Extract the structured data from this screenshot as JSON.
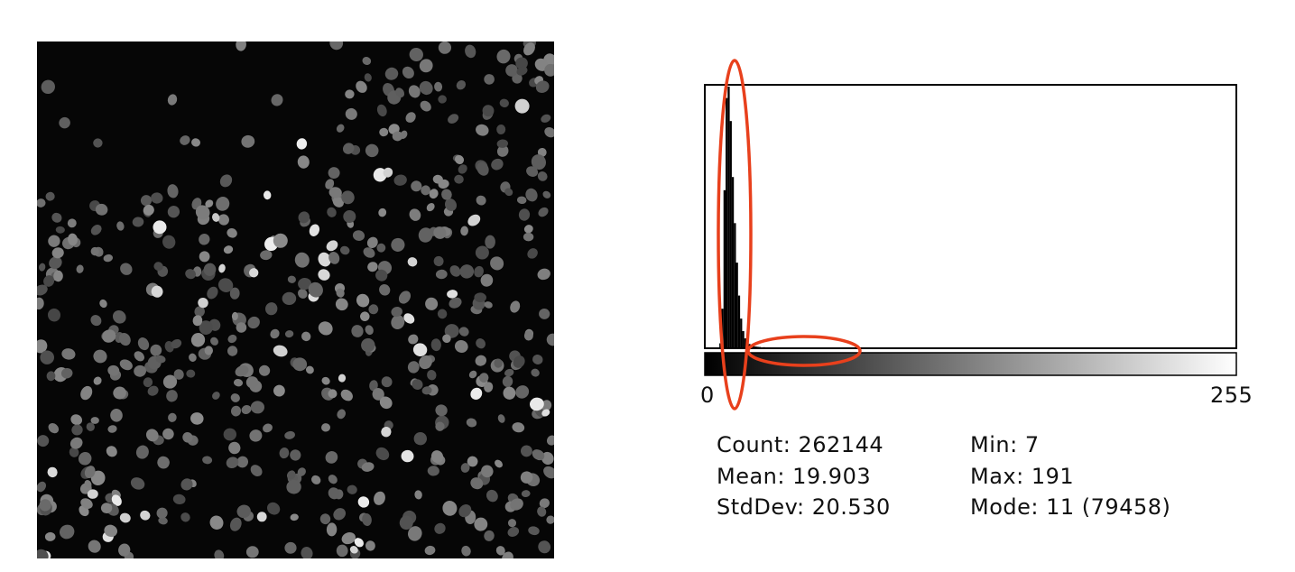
{
  "image": {
    "subject": "fluorescent-nuclei",
    "background": "#060606"
  },
  "histogram": {
    "x_min_label": "0",
    "x_max_label": "255",
    "highlight_color": "#e8401c",
    "stats": {
      "count": {
        "label": "Count:",
        "value": "262144"
      },
      "mean": {
        "label": "Mean:",
        "value": "19.903"
      },
      "stddev": {
        "label": "StdDev:",
        "value": "20.530"
      },
      "min": {
        "label": "Min:",
        "value": "7"
      },
      "max": {
        "label": "Max:",
        "value": "191"
      },
      "mode": {
        "label": "Mode:",
        "value": "11 (79458)"
      }
    }
  },
  "chart_data": {
    "type": "bar",
    "xlim": [
      0,
      255
    ],
    "x": [
      7,
      8,
      9,
      10,
      11,
      12,
      13,
      14,
      15,
      16,
      17,
      18,
      19,
      20,
      21,
      22,
      23,
      24,
      25,
      26,
      28,
      30,
      32,
      35,
      40,
      45,
      50,
      60,
      70,
      80,
      90,
      100,
      110,
      120,
      140,
      160,
      191
    ],
    "values": [
      1500,
      12000,
      48000,
      76000,
      79458,
      69000,
      52000,
      38000,
      26000,
      16000,
      9000,
      5200,
      3000,
      1900,
      1300,
      900,
      650,
      520,
      440,
      380,
      320,
      280,
      250,
      220,
      190,
      160,
      140,
      110,
      80,
      60,
      45,
      35,
      25,
      18,
      10,
      6,
      2
    ],
    "ylim": [
      0,
      79458
    ]
  }
}
